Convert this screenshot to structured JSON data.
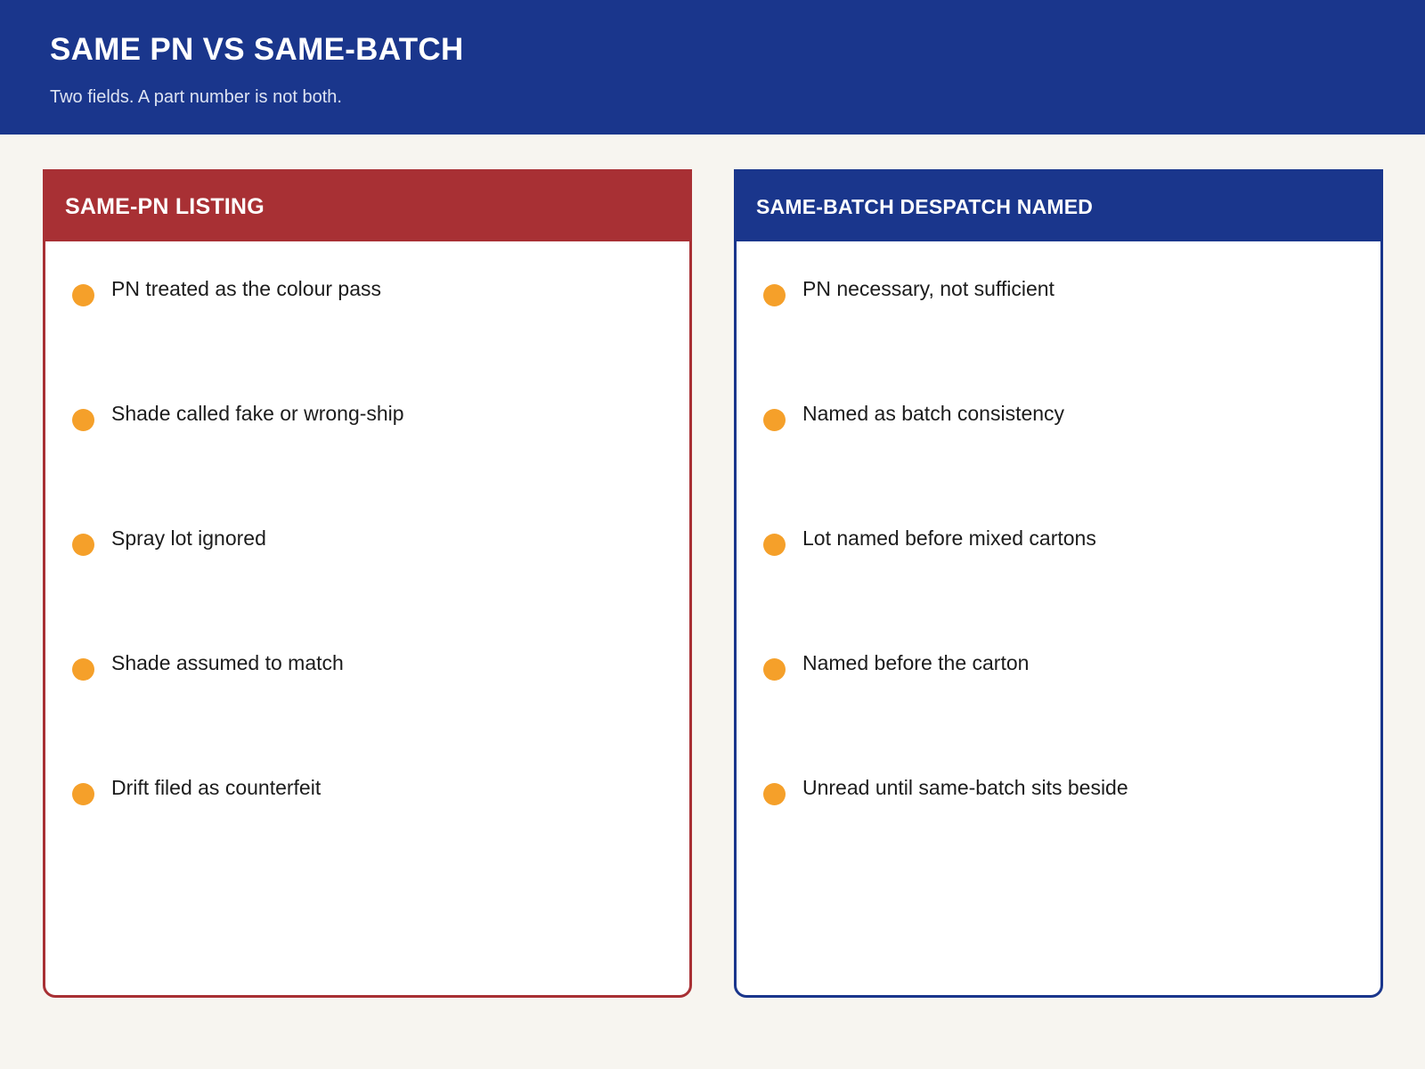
{
  "header": {
    "title": "SAME PN VS SAME-BATCH",
    "subtitle": "Two fields. A part number is not both."
  },
  "colors": {
    "header_bg": "#1a368c",
    "left_panel_accent": "#a83034",
    "right_panel_accent": "#1a368c",
    "bullet": "#f5a02a",
    "page_bg": "#f7f5f0"
  },
  "panels": [
    {
      "title": "SAME-PN LISTING",
      "items": [
        "PN treated as the colour pass",
        "Shade called fake or wrong-ship",
        "Spray lot ignored",
        "Shade assumed to match",
        "Drift filed as counterfeit"
      ]
    },
    {
      "title": "SAME-BATCH DESPATCH NAMED",
      "items": [
        "PN necessary, not sufficient",
        "Named as batch consistency",
        "Lot named before mixed cartons",
        "Named before the carton",
        "Unread until same-batch sits beside"
      ]
    }
  ]
}
